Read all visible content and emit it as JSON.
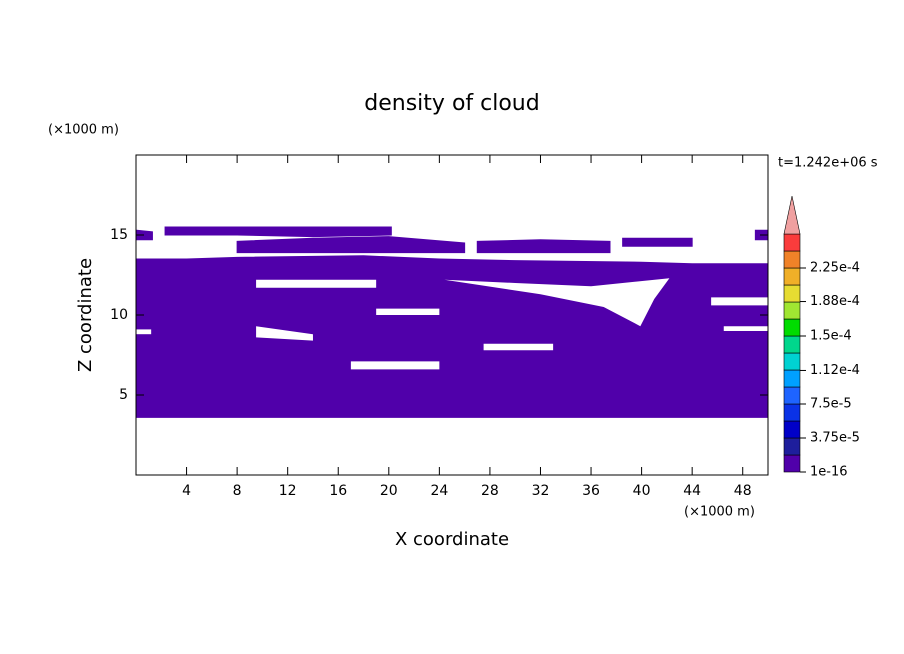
{
  "chart_data": {
    "type": "contour",
    "title": "density of cloud",
    "x_label": "X coordinate",
    "y_label": "Z coordinate",
    "x_unit": "(×1000 m)",
    "y_unit": "(×1000 m)",
    "time_label": "t=1.242e+06 s",
    "xlim": [
      0,
      50
    ],
    "ylim": [
      0,
      20
    ],
    "xticks": [
      4,
      8,
      12,
      16,
      20,
      24,
      28,
      32,
      36,
      40,
      44,
      48
    ],
    "yticks": [
      5,
      10,
      15
    ],
    "colorbar": {
      "colors": [
        "#5000aa",
        "#1e1e9c",
        "#0000c8",
        "#0a32e6",
        "#1e64ff",
        "#00a0ff",
        "#00d2d2",
        "#00d78c",
        "#00dc00",
        "#a0e632",
        "#e6dc32",
        "#f0af28",
        "#f08228",
        "#fa3c3c"
      ],
      "extend_color": "#f0a0a0",
      "ticks": [
        1e-16,
        {
          "value": 3.75e-05,
          "label": "3.75e-5"
        },
        {
          "value": 7.5e-05,
          "label": "7.5e-5"
        },
        {
          "value": 0.000112,
          "label": "1.12e-4"
        },
        {
          "value": 0.00015,
          "label": "1.5e-4"
        },
        {
          "value": 0.000188,
          "label": "1.88e-4"
        },
        {
          "value": 0.000225,
          "label": "2.25e-4"
        }
      ],
      "step": 1.875e-05
    },
    "regions": [
      [
        [
          0,
          3.6
        ],
        [
          50,
          3.6
        ],
        [
          50,
          13.2
        ],
        [
          44,
          13.2
        ],
        [
          40,
          13.3
        ],
        [
          30,
          13.4
        ],
        [
          24,
          13.5
        ],
        [
          18,
          13.7
        ],
        [
          8,
          13.6
        ],
        [
          4,
          13.5
        ],
        [
          0,
          13.5
        ]
      ],
      [
        [
          2.3,
          15.0
        ],
        [
          2.3,
          15.5
        ],
        [
          20.2,
          15.5
        ],
        [
          20.2,
          15.0
        ],
        [
          14,
          14.9
        ],
        [
          8,
          15.0
        ]
      ],
      [
        [
          0,
          14.7
        ],
        [
          0,
          15.3
        ],
        [
          1.3,
          15.2
        ],
        [
          1.3,
          14.7
        ]
      ],
      [
        [
          8,
          13.9
        ],
        [
          8,
          14.6
        ],
        [
          14,
          14.8
        ],
        [
          20,
          14.9
        ],
        [
          26,
          14.5
        ],
        [
          26,
          13.9
        ]
      ],
      [
        [
          27,
          13.9
        ],
        [
          27,
          14.6
        ],
        [
          32,
          14.7
        ],
        [
          37.5,
          14.6
        ],
        [
          37.5,
          13.9
        ]
      ],
      [
        [
          38.5,
          14.3
        ],
        [
          38.5,
          14.8
        ],
        [
          44,
          14.8
        ],
        [
          44,
          14.3
        ]
      ],
      [
        [
          49,
          14.7
        ],
        [
          49,
          15.3
        ],
        [
          50,
          15.3
        ],
        [
          50,
          14.7
        ]
      ]
    ],
    "holes": [
      [
        [
          9.5,
          11.7
        ],
        [
          19,
          11.7
        ],
        [
          19,
          12.2
        ],
        [
          9.5,
          12.2
        ]
      ],
      [
        [
          24.4,
          12.2
        ],
        [
          30,
          12.0
        ],
        [
          36,
          11.8
        ],
        [
          42.2,
          12.3
        ],
        [
          41,
          11.0
        ],
        [
          39.9,
          9.3
        ],
        [
          37,
          10.5
        ],
        [
          32,
          11.3
        ]
      ],
      [
        [
          0,
          8.8
        ],
        [
          1.2,
          8.8
        ],
        [
          1.2,
          9.1
        ],
        [
          0,
          9.1
        ]
      ],
      [
        [
          9.5,
          8.6
        ],
        [
          14,
          8.4
        ],
        [
          14,
          8.8
        ],
        [
          9.5,
          9.3
        ]
      ],
      [
        [
          19,
          10.0
        ],
        [
          24,
          10.0
        ],
        [
          24,
          10.4
        ],
        [
          19,
          10.4
        ]
      ],
      [
        [
          17,
          6.6
        ],
        [
          24,
          6.6
        ],
        [
          24,
          7.1
        ],
        [
          17,
          7.1
        ]
      ],
      [
        [
          27.5,
          7.8
        ],
        [
          33,
          7.8
        ],
        [
          33,
          8.2
        ],
        [
          27.5,
          8.2
        ]
      ],
      [
        [
          45.5,
          10.6
        ],
        [
          50,
          10.6
        ],
        [
          50,
          11.1
        ],
        [
          45.5,
          11.1
        ]
      ],
      [
        [
          46.5,
          9.0
        ],
        [
          50,
          9.0
        ],
        [
          50,
          9.3
        ],
        [
          46.5,
          9.3
        ]
      ]
    ]
  }
}
